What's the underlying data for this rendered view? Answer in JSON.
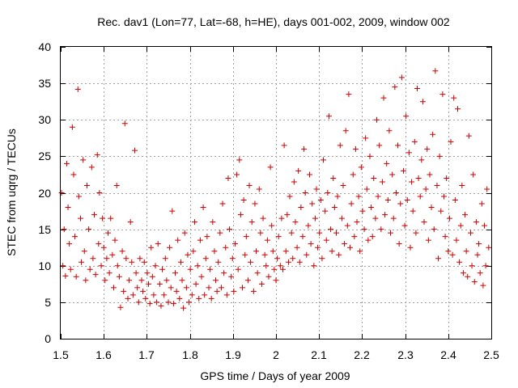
{
  "chart_data": {
    "type": "scatter",
    "title": "Rec. dav1 (Lon=77, Lat=-68, h=HE), days 001-002, 2009, window 002",
    "xlabel": "GPS time / Days of year 2009",
    "ylabel": "STEC from uqrg / TECUs",
    "xlim": [
      1.5,
      2.5
    ],
    "ylim": [
      0,
      40
    ],
    "xticks": [
      "1.5",
      "1.6",
      "1.7",
      "1.8",
      "1.9",
      "2",
      "2.1",
      "2.2",
      "2.3",
      "2.4",
      "2.5"
    ],
    "yticks": [
      "0",
      "5",
      "10",
      "15",
      "20",
      "25",
      "30",
      "35",
      "40"
    ],
    "grid": true,
    "marker": "+",
    "color": "#cc0000",
    "series": [
      {
        "name": "STEC",
        "points": [
          [
            1.502,
            20.0
          ],
          [
            1.505,
            10.0
          ],
          [
            1.508,
            15.0
          ],
          [
            1.511,
            8.6
          ],
          [
            1.514,
            24.0
          ],
          [
            1.517,
            18.0
          ],
          [
            1.52,
            13.0
          ],
          [
            1.523,
            9.5
          ],
          [
            1.527,
            29.0
          ],
          [
            1.53,
            22.5
          ],
          [
            1.533,
            14.0
          ],
          [
            1.536,
            8.5
          ],
          [
            1.54,
            34.2
          ],
          [
            1.542,
            19.5
          ],
          [
            1.546,
            16.5
          ],
          [
            1.548,
            10.5
          ],
          [
            1.552,
            24.5
          ],
          [
            1.555,
            12.0
          ],
          [
            1.558,
            8.0
          ],
          [
            1.561,
            21.0
          ],
          [
            1.565,
            15.0
          ],
          [
            1.568,
            9.5
          ],
          [
            1.572,
            23.5
          ],
          [
            1.575,
            11.0
          ],
          [
            1.578,
            17.0
          ],
          [
            1.581,
            8.8
          ],
          [
            1.585,
            25.2
          ],
          [
            1.588,
            13.0
          ],
          [
            1.59,
            20.0
          ],
          [
            1.594,
            10.0
          ],
          [
            1.597,
            16.5
          ],
          [
            1.6,
            12.5
          ],
          [
            1.603,
            8.0
          ],
          [
            1.607,
            11.0
          ],
          [
            1.61,
            14.5
          ],
          [
            1.613,
            9.0
          ],
          [
            1.616,
            16.5
          ],
          [
            1.62,
            11.5
          ],
          [
            1.623,
            7.0
          ],
          [
            1.626,
            13.5
          ],
          [
            1.63,
            21.0
          ],
          [
            1.632,
            10.0
          ],
          [
            1.636,
            8.5
          ],
          [
            1.639,
            4.3
          ],
          [
            1.643,
            12.0
          ],
          [
            1.646,
            6.5
          ],
          [
            1.649,
            29.5
          ],
          [
            1.652,
            11.0
          ],
          [
            1.656,
            5.5
          ],
          [
            1.659,
            8.0
          ],
          [
            1.662,
            16.0
          ],
          [
            1.665,
            10.5
          ],
          [
            1.668,
            6.0
          ],
          [
            1.672,
            25.8
          ],
          [
            1.675,
            9.0
          ],
          [
            1.678,
            7.0
          ],
          [
            1.681,
            5.0
          ],
          [
            1.684,
            11.0
          ],
          [
            1.688,
            8.0
          ],
          [
            1.691,
            6.5
          ],
          [
            1.694,
            10.5
          ],
          [
            1.697,
            5.5
          ],
          [
            1.701,
            9.0
          ],
          [
            1.704,
            7.5
          ],
          [
            1.707,
            4.8
          ],
          [
            1.71,
            12.5
          ],
          [
            1.713,
            8.5
          ],
          [
            1.716,
            6.0
          ],
          [
            1.72,
            10.0
          ],
          [
            1.723,
            5.0
          ],
          [
            1.726,
            13.0
          ],
          [
            1.73,
            7.5
          ],
          [
            1.733,
            4.5
          ],
          [
            1.736,
            9.5
          ],
          [
            1.74,
            6.0
          ],
          [
            1.743,
            11.0
          ],
          [
            1.746,
            8.0
          ],
          [
            1.75,
            5.0
          ],
          [
            1.753,
            12.5
          ],
          [
            1.756,
            7.0
          ],
          [
            1.759,
            17.5
          ],
          [
            1.762,
            4.8
          ],
          [
            1.766,
            9.0
          ],
          [
            1.769,
            6.5
          ],
          [
            1.772,
            13.5
          ],
          [
            1.776,
            5.5
          ],
          [
            1.779,
            10.5
          ],
          [
            1.782,
            8.0
          ],
          [
            1.785,
            4.2
          ],
          [
            1.788,
            14.5
          ],
          [
            1.792,
            7.0
          ],
          [
            1.795,
            11.5
          ],
          [
            1.798,
            5.0
          ],
          [
            1.801,
            9.5
          ],
          [
            1.805,
            6.0
          ],
          [
            1.808,
            12.0
          ],
          [
            1.811,
            16.0
          ],
          [
            1.814,
            7.5
          ],
          [
            1.818,
            10.0
          ],
          [
            1.821,
            5.5
          ],
          [
            1.824,
            13.5
          ],
          [
            1.827,
            8.5
          ],
          [
            1.831,
            18.0
          ],
          [
            1.834,
            6.0
          ],
          [
            1.837,
            11.0
          ],
          [
            1.84,
            14.0
          ],
          [
            1.844,
            7.0
          ],
          [
            1.847,
            9.5
          ],
          [
            1.85,
            5.5
          ],
          [
            1.853,
            16.0
          ],
          [
            1.857,
            12.0
          ],
          [
            1.86,
            8.0
          ],
          [
            1.863,
            6.5
          ],
          [
            1.866,
            10.5
          ],
          [
            1.87,
            14.5
          ],
          [
            1.873,
            7.0
          ],
          [
            1.876,
            18.5
          ],
          [
            1.879,
            9.0
          ],
          [
            1.883,
            12.5
          ],
          [
            1.886,
            6.0
          ],
          [
            1.889,
            22.0
          ],
          [
            1.892,
            15.0
          ],
          [
            1.896,
            8.5
          ],
          [
            1.899,
            11.0
          ],
          [
            1.902,
            6.5
          ],
          [
            1.905,
            13.0
          ],
          [
            1.909,
            22.5
          ],
          [
            1.912,
            9.5
          ],
          [
            1.915,
            24.5
          ],
          [
            1.918,
            17.0
          ],
          [
            1.922,
            7.0
          ],
          [
            1.925,
            19.0
          ],
          [
            1.928,
            11.5
          ],
          [
            1.931,
            14.0
          ],
          [
            1.935,
            8.0
          ],
          [
            1.938,
            21.0
          ],
          [
            1.941,
            10.5
          ],
          [
            1.944,
            16.0
          ],
          [
            1.948,
            6.5
          ],
          [
            1.951,
            18.5
          ],
          [
            1.954,
            12.0
          ],
          [
            1.957,
            9.0
          ],
          [
            1.961,
            20.5
          ],
          [
            1.964,
            14.5
          ],
          [
            1.967,
            7.5
          ],
          [
            1.97,
            16.5
          ],
          [
            1.974,
            11.5
          ],
          [
            1.977,
            10.0
          ],
          [
            1.98,
            13.5
          ],
          [
            1.983,
            8.5
          ],
          [
            1.987,
            23.5
          ],
          [
            1.99,
            15.5
          ],
          [
            1.993,
            12.0
          ],
          [
            1.996,
            9.5
          ],
          [
            2.0,
            8.0
          ],
          [
            2.003,
            11.0
          ],
          [
            2.006,
            14.0
          ],
          [
            2.01,
            10.0
          ],
          [
            2.013,
            16.5
          ],
          [
            2.016,
            9.5
          ],
          [
            2.019,
            26.5
          ],
          [
            2.023,
            12.0
          ],
          [
            2.026,
            17.0
          ],
          [
            2.029,
            10.5
          ],
          [
            2.032,
            19.5
          ],
          [
            2.036,
            14.5
          ],
          [
            2.039,
            11.0
          ],
          [
            2.042,
            21.5
          ],
          [
            2.045,
            16.0
          ],
          [
            2.049,
            12.5
          ],
          [
            2.052,
            23.0
          ],
          [
            2.055,
            10.5
          ],
          [
            2.058,
            18.0
          ],
          [
            2.062,
            14.0
          ],
          [
            2.065,
            26.0
          ],
          [
            2.068,
            20.0
          ],
          [
            2.071,
            11.5
          ],
          [
            2.075,
            15.5
          ],
          [
            2.078,
            22.5
          ],
          [
            2.081,
            13.0
          ],
          [
            2.084,
            18.5
          ],
          [
            2.088,
            10.0
          ],
          [
            2.091,
            16.5
          ],
          [
            2.094,
            20.5
          ],
          [
            2.097,
            12.5
          ],
          [
            2.101,
            14.5
          ],
          [
            2.104,
            19.0
          ],
          [
            2.107,
            11.0
          ],
          [
            2.11,
            24.5
          ],
          [
            2.114,
            17.5
          ],
          [
            2.117,
            13.5
          ],
          [
            2.12,
            20.0
          ],
          [
            2.123,
            30.5
          ],
          [
            2.127,
            15.0
          ],
          [
            2.13,
            12.0
          ],
          [
            2.133,
            22.0
          ],
          [
            2.136,
            18.0
          ],
          [
            2.14,
            14.5
          ],
          [
            2.143,
            19.5
          ],
          [
            2.146,
            11.5
          ],
          [
            2.149,
            26.5
          ],
          [
            2.153,
            16.5
          ],
          [
            2.156,
            21.0
          ],
          [
            2.159,
            13.0
          ],
          [
            2.162,
            28.5
          ],
          [
            2.166,
            15.5
          ],
          [
            2.169,
            33.5
          ],
          [
            2.172,
            12.5
          ],
          [
            2.175,
            18.5
          ],
          [
            2.179,
            22.5
          ],
          [
            2.182,
            14.0
          ],
          [
            2.185,
            26.0
          ],
          [
            2.188,
            16.0
          ],
          [
            2.192,
            19.5
          ],
          [
            2.195,
            12.0
          ],
          [
            2.198,
            23.5
          ],
          [
            2.201,
            17.5
          ],
          [
            2.205,
            15.0
          ],
          [
            2.208,
            27.5
          ],
          [
            2.211,
            20.5
          ],
          [
            2.214,
            13.5
          ],
          [
            2.218,
            25.0
          ],
          [
            2.221,
            18.0
          ],
          [
            2.224,
            14.0
          ],
          [
            2.227,
            22.0
          ],
          [
            2.231,
            16.5
          ],
          [
            2.234,
            30.0
          ],
          [
            2.237,
            19.5
          ],
          [
            2.24,
            26.5
          ],
          [
            2.244,
            15.0
          ],
          [
            2.247,
            21.5
          ],
          [
            2.25,
            33.0
          ],
          [
            2.253,
            17.0
          ],
          [
            2.257,
            24.0
          ],
          [
            2.26,
            19.0
          ],
          [
            2.263,
            28.5
          ],
          [
            2.266,
            14.5
          ],
          [
            2.27,
            22.5
          ],
          [
            2.273,
            16.5
          ],
          [
            2.276,
            34.5
          ],
          [
            2.279,
            20.0
          ],
          [
            2.283,
            26.5
          ],
          [
            2.286,
            13.0
          ],
          [
            2.289,
            18.5
          ],
          [
            2.292,
            35.8
          ],
          [
            2.296,
            23.0
          ],
          [
            2.299,
            15.5
          ],
          [
            2.302,
            30.5
          ],
          [
            2.305,
            19.0
          ],
          [
            2.309,
            25.5
          ],
          [
            2.312,
            12.5
          ],
          [
            2.315,
            21.5
          ],
          [
            2.318,
            17.5
          ],
          [
            2.322,
            27.0
          ],
          [
            2.325,
            14.5
          ],
          [
            2.328,
            34.3
          ],
          [
            2.331,
            22.0
          ],
          [
            2.335,
            19.5
          ],
          [
            2.338,
            24.5
          ],
          [
            2.341,
            32.5
          ],
          [
            2.344,
            16.0
          ],
          [
            2.348,
            20.5
          ],
          [
            2.351,
            26.0
          ],
          [
            2.354,
            13.5
          ],
          [
            2.357,
            22.5
          ],
          [
            2.361,
            18.0
          ],
          [
            2.364,
            28.0
          ],
          [
            2.367,
            15.0
          ],
          [
            2.37,
            36.7
          ],
          [
            2.374,
            21.0
          ],
          [
            2.377,
            11.0
          ],
          [
            2.38,
            25.0
          ],
          [
            2.383,
            17.5
          ],
          [
            2.387,
            33.5
          ],
          [
            2.39,
            19.5
          ],
          [
            2.393,
            14.0
          ],
          [
            2.396,
            22.0
          ],
          [
            2.4,
            12.0
          ],
          [
            2.403,
            16.5
          ],
          [
            2.406,
            27.0
          ],
          [
            2.41,
            11.5
          ],
          [
            2.413,
            33.0
          ],
          [
            2.416,
            19.0
          ],
          [
            2.419,
            13.5
          ],
          [
            2.422,
            31.5
          ],
          [
            2.426,
            10.5
          ],
          [
            2.429,
            15.5
          ],
          [
            2.432,
            21.0
          ],
          [
            2.435,
            9.0
          ],
          [
            2.439,
            17.0
          ],
          [
            2.442,
            12.0
          ],
          [
            2.445,
            8.5
          ],
          [
            2.448,
            27.8
          ],
          [
            2.452,
            14.5
          ],
          [
            2.455,
            10.0
          ],
          [
            2.458,
            22.5
          ],
          [
            2.461,
            7.8
          ],
          [
            2.465,
            16.0
          ],
          [
            2.468,
            11.5
          ],
          [
            2.471,
            13.0
          ],
          [
            2.474,
            9.0
          ],
          [
            2.478,
            18.5
          ],
          [
            2.481,
            7.3
          ],
          [
            2.484,
            15.5
          ],
          [
            2.487,
            10.0
          ],
          [
            2.49,
            20.5
          ],
          [
            2.494,
            12.5
          ]
        ]
      }
    ]
  }
}
